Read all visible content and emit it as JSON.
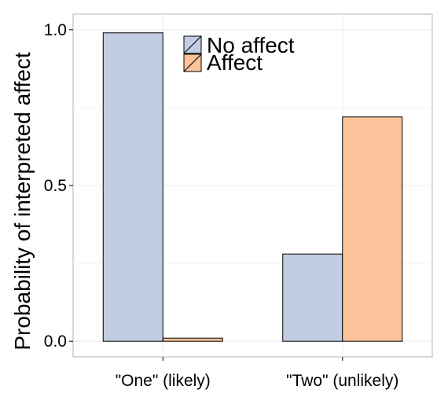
{
  "chart_data": {
    "type": "bar",
    "title": "",
    "xlabel": "",
    "ylabel": "Probability of interpreted affect",
    "categories": [
      "\"One\" (likely)",
      "\"Two\" (unlikely)"
    ],
    "series": [
      {
        "name": "No affect",
        "values": [
          0.99,
          0.28
        ],
        "color": "#c2cce2"
      },
      {
        "name": "Affect",
        "values": [
          0.01,
          0.72
        ],
        "color": "#fcc39a"
      }
    ],
    "ylim": [
      -0.05,
      1.05
    ],
    "yticks": [
      0.0,
      0.5,
      1.0
    ],
    "ytick_labels": [
      "0.0",
      "0.5",
      "1.0"
    ],
    "grid": true,
    "legend_position": "top-center"
  }
}
